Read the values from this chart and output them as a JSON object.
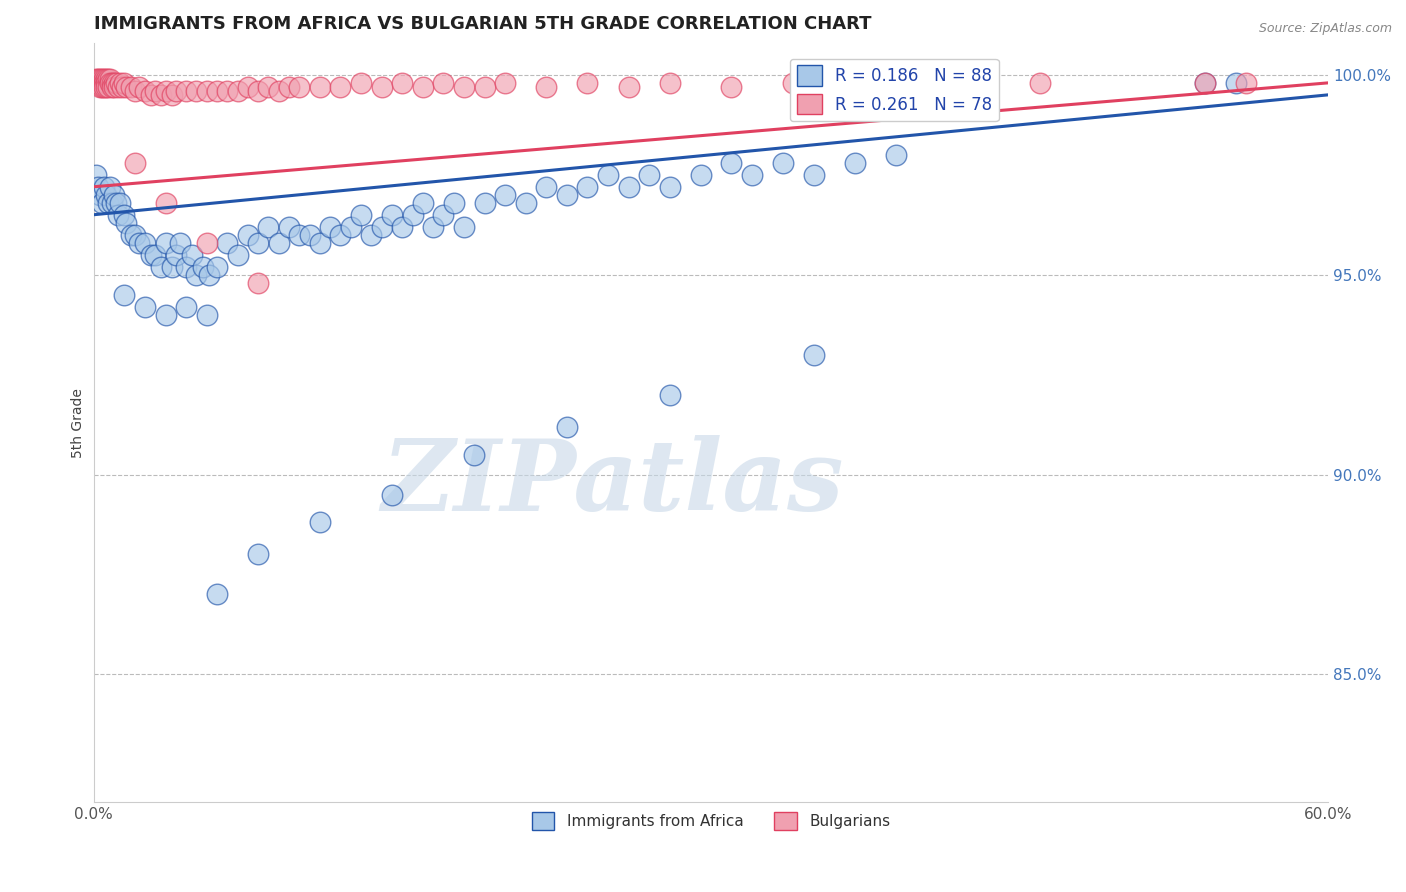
{
  "title": "IMMIGRANTS FROM AFRICA VS BULGARIAN 5TH GRADE CORRELATION CHART",
  "source": "Source: ZipAtlas.com",
  "ylabel": "5th Grade",
  "legend_label_blue": "Immigrants from Africa",
  "legend_label_pink": "Bulgarians",
  "R_blue": 0.186,
  "N_blue": 88,
  "R_pink": 0.261,
  "N_pink": 78,
  "xlim": [
    0.0,
    0.6
  ],
  "ylim": [
    0.818,
    1.008
  ],
  "yticks": [
    0.85,
    0.9,
    0.95,
    1.0
  ],
  "ytick_labels": [
    "85.0%",
    "90.0%",
    "95.0%",
    "100.0%"
  ],
  "xticks": [
    0.0,
    0.1,
    0.2,
    0.3,
    0.4,
    0.5,
    0.6
  ],
  "xtick_labels": [
    "0.0%",
    "",
    "",
    "",
    "",
    "",
    "60.0%"
  ],
  "color_blue": "#A8C8E8",
  "color_pink": "#F0A0B0",
  "line_blue": "#2255AA",
  "line_pink": "#E04060",
  "background": "#FFFFFF",
  "watermark": "ZIPatlas",
  "watermark_color": "#C8D8E8",
  "blue_x": [
    0.001,
    0.002,
    0.003,
    0.004,
    0.005,
    0.006,
    0.007,
    0.008,
    0.009,
    0.01,
    0.011,
    0.012,
    0.013,
    0.015,
    0.016,
    0.018,
    0.02,
    0.022,
    0.025,
    0.028,
    0.03,
    0.033,
    0.035,
    0.038,
    0.04,
    0.042,
    0.045,
    0.048,
    0.05,
    0.053,
    0.056,
    0.06,
    0.065,
    0.07,
    0.075,
    0.08,
    0.085,
    0.09,
    0.095,
    0.1,
    0.105,
    0.11,
    0.115,
    0.12,
    0.125,
    0.13,
    0.135,
    0.14,
    0.145,
    0.15,
    0.155,
    0.16,
    0.165,
    0.17,
    0.175,
    0.18,
    0.19,
    0.2,
    0.21,
    0.22,
    0.23,
    0.24,
    0.25,
    0.26,
    0.27,
    0.28,
    0.295,
    0.31,
    0.32,
    0.335,
    0.35,
    0.37,
    0.39,
    0.015,
    0.025,
    0.035,
    0.045,
    0.055,
    0.54,
    0.555,
    0.35,
    0.28,
    0.23,
    0.185,
    0.145,
    0.11,
    0.08,
    0.06
  ],
  "blue_y": [
    0.975,
    0.972,
    0.97,
    0.968,
    0.972,
    0.97,
    0.968,
    0.972,
    0.968,
    0.97,
    0.968,
    0.965,
    0.968,
    0.965,
    0.963,
    0.96,
    0.96,
    0.958,
    0.958,
    0.955,
    0.955,
    0.952,
    0.958,
    0.952,
    0.955,
    0.958,
    0.952,
    0.955,
    0.95,
    0.952,
    0.95,
    0.952,
    0.958,
    0.955,
    0.96,
    0.958,
    0.962,
    0.958,
    0.962,
    0.96,
    0.96,
    0.958,
    0.962,
    0.96,
    0.962,
    0.965,
    0.96,
    0.962,
    0.965,
    0.962,
    0.965,
    0.968,
    0.962,
    0.965,
    0.968,
    0.962,
    0.968,
    0.97,
    0.968,
    0.972,
    0.97,
    0.972,
    0.975,
    0.972,
    0.975,
    0.972,
    0.975,
    0.978,
    0.975,
    0.978,
    0.975,
    0.978,
    0.98,
    0.945,
    0.942,
    0.94,
    0.942,
    0.94,
    0.998,
    0.998,
    0.93,
    0.92,
    0.912,
    0.905,
    0.895,
    0.888,
    0.88,
    0.87
  ],
  "pink_x": [
    0.001,
    0.001,
    0.002,
    0.002,
    0.003,
    0.003,
    0.003,
    0.004,
    0.004,
    0.004,
    0.005,
    0.005,
    0.005,
    0.006,
    0.006,
    0.006,
    0.007,
    0.007,
    0.008,
    0.008,
    0.009,
    0.009,
    0.01,
    0.01,
    0.011,
    0.012,
    0.013,
    0.014,
    0.015,
    0.016,
    0.018,
    0.02,
    0.022,
    0.025,
    0.028,
    0.03,
    0.033,
    0.035,
    0.038,
    0.04,
    0.045,
    0.05,
    0.055,
    0.06,
    0.065,
    0.07,
    0.075,
    0.08,
    0.085,
    0.09,
    0.095,
    0.1,
    0.11,
    0.12,
    0.13,
    0.14,
    0.15,
    0.16,
    0.17,
    0.18,
    0.19,
    0.2,
    0.22,
    0.24,
    0.26,
    0.28,
    0.31,
    0.34,
    0.37,
    0.4,
    0.43,
    0.46,
    0.54,
    0.56,
    0.02,
    0.035,
    0.055,
    0.08
  ],
  "pink_y": [
    0.999,
    0.998,
    0.999,
    0.998,
    0.999,
    0.998,
    0.997,
    0.999,
    0.998,
    0.997,
    0.999,
    0.998,
    0.997,
    0.999,
    0.998,
    0.997,
    0.999,
    0.997,
    0.999,
    0.998,
    0.998,
    0.997,
    0.998,
    0.997,
    0.998,
    0.997,
    0.998,
    0.997,
    0.998,
    0.997,
    0.997,
    0.996,
    0.997,
    0.996,
    0.995,
    0.996,
    0.995,
    0.996,
    0.995,
    0.996,
    0.996,
    0.996,
    0.996,
    0.996,
    0.996,
    0.996,
    0.997,
    0.996,
    0.997,
    0.996,
    0.997,
    0.997,
    0.997,
    0.997,
    0.998,
    0.997,
    0.998,
    0.997,
    0.998,
    0.997,
    0.997,
    0.998,
    0.997,
    0.998,
    0.997,
    0.998,
    0.997,
    0.998,
    0.997,
    0.998,
    0.997,
    0.998,
    0.998,
    0.998,
    0.978,
    0.968,
    0.958,
    0.948
  ]
}
